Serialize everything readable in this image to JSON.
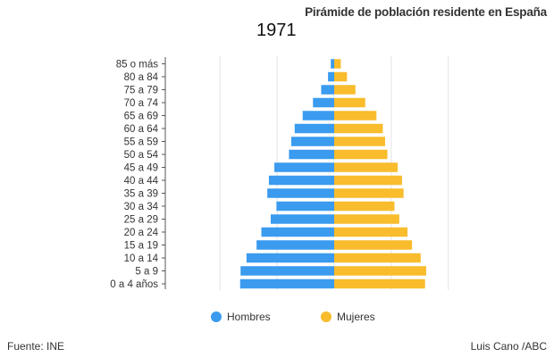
{
  "title": "Pirámide de población residente en España",
  "source": "Fuente: INE",
  "credit": "Luis Cano /ABC",
  "colors": {
    "hombres": "#3a9bef",
    "mujeres": "#f8bc2c",
    "grid": "#e3e3e3",
    "axis": "#555555"
  },
  "chart_data": {
    "type": "bar",
    "orientation": "horizontal",
    "layout": "population-pyramid",
    "year": "1971",
    "categories": [
      "85 o más",
      "80 a 84",
      "75 a 79",
      "70 a 74",
      "65 a 69",
      "60 a 64",
      "55 a 59",
      "50 a 54",
      "45 a 49",
      "40 a 44",
      "35 a 39",
      "30 a 34",
      "25 a 29",
      "20 a 24",
      "15 a 19",
      "10 a 14",
      "5 a 9",
      "0 a 4 años"
    ],
    "series": [
      {
        "name": "Hombres",
        "color": "#3a9bef",
        "values": [
          15,
          27,
          57,
          93,
          138,
          173,
          188,
          198,
          262,
          286,
          293,
          253,
          278,
          319,
          340,
          384,
          410,
          412
        ]
      },
      {
        "name": "Mujeres",
        "color": "#f8bc2c",
        "values": [
          29,
          56,
          93,
          136,
          185,
          213,
          223,
          233,
          278,
          297,
          304,
          264,
          285,
          321,
          341,
          379,
          403,
          398
        ]
      }
    ],
    "xlim": [
      -500,
      500
    ],
    "grid": true,
    "legend": "bottom"
  }
}
